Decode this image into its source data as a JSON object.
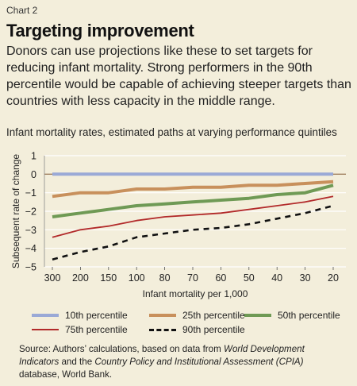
{
  "header": {
    "chart_number": "Chart 2",
    "title": "Targeting improvement",
    "description": "Donors can use projections like these to set targets for reducing infant mortality. Strong performers in the 90th percentile would be capable of achieving steeper targets than countries with less capacity in the middle range."
  },
  "chart_data": {
    "type": "line",
    "title": "Infant mortality rates, estimated paths at varying performance quintiles",
    "xlabel": "Infant mortality per 1,000",
    "ylabel": "Subsequent rate of change",
    "categories": [
      "300",
      "200",
      "150",
      "100",
      "80",
      "70",
      "60",
      "50",
      "40",
      "30",
      "20"
    ],
    "yticks": [
      "1",
      "0",
      "−1",
      "−2",
      "−3",
      "−4",
      "−5"
    ],
    "ylim": [
      -5,
      1
    ],
    "grid": true,
    "legend_position": "bottom",
    "series": [
      {
        "name": "10th percentile",
        "color": "#9aa9d6",
        "dash": "solid",
        "values": [
          0,
          0,
          0,
          0,
          0,
          0,
          0,
          0,
          0,
          0,
          0
        ]
      },
      {
        "name": "25th percentile",
        "color": "#c8905c",
        "dash": "solid",
        "values": [
          -1.2,
          -1.0,
          -1.0,
          -0.8,
          -0.8,
          -0.7,
          -0.7,
          -0.6,
          -0.6,
          -0.5,
          -0.4
        ]
      },
      {
        "name": "50th percentile",
        "color": "#6f9a55",
        "dash": "solid",
        "values": [
          -2.3,
          -2.1,
          -1.9,
          -1.7,
          -1.6,
          -1.5,
          -1.4,
          -1.3,
          -1.1,
          -1.0,
          -0.6
        ]
      },
      {
        "name": "75th percentile",
        "color": "#b22a2a",
        "dash": "solid",
        "values": [
          -3.4,
          -3.0,
          -2.8,
          -2.5,
          -2.3,
          -2.2,
          -2.1,
          -1.9,
          -1.7,
          -1.5,
          -1.2
        ]
      },
      {
        "name": "90th percentile",
        "color": "#111111",
        "dash": "dashed",
        "values": [
          -4.6,
          -4.2,
          -3.9,
          -3.4,
          -3.2,
          -3.0,
          -2.9,
          -2.7,
          -2.4,
          -2.1,
          -1.7
        ]
      }
    ],
    "colors": {
      "background": "#f3eedb",
      "grid": "#ffffff",
      "zero_line": "#a08060"
    }
  },
  "source": {
    "prefix": "Source: Authors’ calculations, based on data from ",
    "italic1": "World Development Indicators",
    "middle": " and the ",
    "italic2": "Country Policy and Institutional Assessment (CPIA)",
    "suffix": " database, World Bank."
  }
}
